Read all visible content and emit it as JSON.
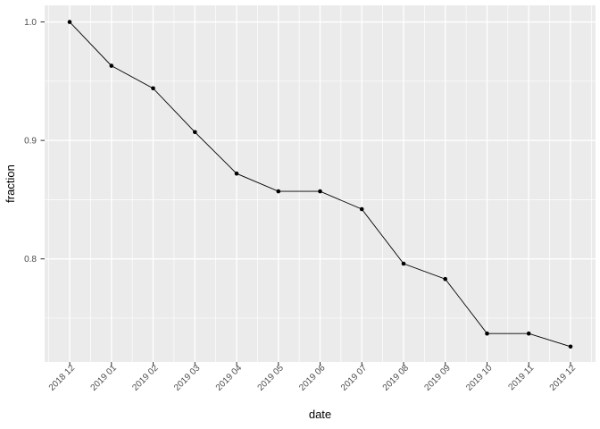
{
  "chart_data": {
    "type": "line",
    "title": "",
    "xlabel": "date",
    "ylabel": "fraction",
    "categories": [
      "2018 12",
      "2019 01",
      "2019 02",
      "2019 03",
      "2019 04",
      "2019 05",
      "2019 06",
      "2019 07",
      "2019 08",
      "2019 09",
      "2019 10",
      "2019 11",
      "2019 12"
    ],
    "values": [
      1.0,
      0.963,
      0.944,
      0.907,
      0.872,
      0.857,
      0.857,
      0.842,
      0.796,
      0.783,
      0.737,
      0.737,
      0.726
    ],
    "y_ticks": [
      0.8,
      0.9,
      1.0
    ],
    "y_tick_labels": [
      "0.8",
      "0.9",
      "1.0"
    ],
    "y_minor_ticks": [
      0.75,
      0.85,
      0.95
    ],
    "ylim": [
      0.713,
      1.014
    ],
    "x_expand": 0.6,
    "grid": "major+minor",
    "legend": "none",
    "marker": "point",
    "colors": {
      "panel_bg": "#EBEBEB",
      "grid": "#FFFFFF",
      "line": "#000000",
      "point": "#000000",
      "tick_label": "#4D4D4D",
      "axis_title": "#000000",
      "tick_mark": "#333333",
      "background": "#FFFFFF"
    }
  }
}
